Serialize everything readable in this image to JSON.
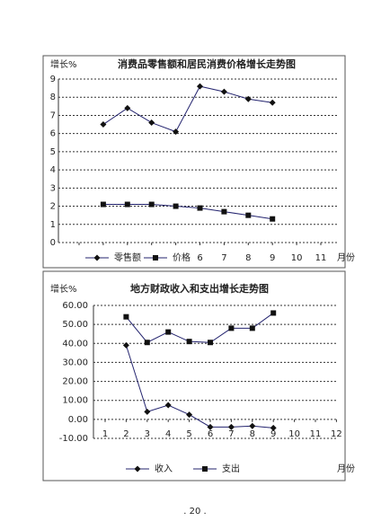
{
  "chart_data": [
    {
      "type": "line",
      "title": "消费品零售额和居民消费价格增长走势图",
      "y_label": "增长%",
      "x_label": "月份",
      "categories": [
        null,
        null,
        null,
        null,
        null,
        "6",
        "7",
        "8",
        "9",
        "10",
        "11"
      ],
      "series": [
        {
          "name": "零售额",
          "color": "#23236e",
          "marker": "diamond",
          "values": [
            null,
            6.5,
            7.4,
            6.6,
            6.1,
            8.6,
            8.3,
            7.9,
            7.7,
            null,
            null
          ]
        },
        {
          "name": "价格",
          "color": "#23236e",
          "marker": "square",
          "values": [
            null,
            2.1,
            2.1,
            2.1,
            2.0,
            1.9,
            1.7,
            1.5,
            1.3,
            null,
            null
          ]
        }
      ],
      "ylim": [
        0,
        9
      ],
      "yticks": [
        0,
        1,
        2,
        3,
        4,
        5,
        6,
        7,
        8,
        9
      ],
      "grid": true
    },
    {
      "type": "line",
      "title": "地方财政收入和支出增长走势图",
      "y_label": "增长%",
      "x_label": "月份",
      "categories": [
        "1",
        "2",
        "3",
        "4",
        "5",
        "6",
        "7",
        "8",
        "9",
        "10",
        "11",
        "12"
      ],
      "series": [
        {
          "name": "收入",
          "color": "#23236e",
          "marker": "diamond",
          "values": [
            null,
            39,
            4,
            7.5,
            2.5,
            -4,
            -4,
            -3.5,
            -4.5,
            null,
            null,
            null
          ]
        },
        {
          "name": "支出",
          "color": "#23236e",
          "marker": "square",
          "values": [
            null,
            54,
            40.5,
            46,
            41,
            40.5,
            48,
            48,
            56,
            null,
            null,
            null
          ]
        }
      ],
      "ylim": [
        -10,
        60
      ],
      "yticks": [
        {
          "value": -10,
          "label": "-10.00"
        },
        {
          "value": 0,
          "label": "0.00"
        },
        {
          "value": 10,
          "label": "10.00"
        },
        {
          "value": 20,
          "label": "20.00"
        },
        {
          "value": 30,
          "label": "30.00"
        },
        {
          "value": 40,
          "label": "40.00"
        },
        {
          "value": 50,
          "label": "50.00"
        },
        {
          "value": 60,
          "label": "60.00"
        }
      ],
      "grid": true
    }
  ],
  "page_number": ". 20 ."
}
